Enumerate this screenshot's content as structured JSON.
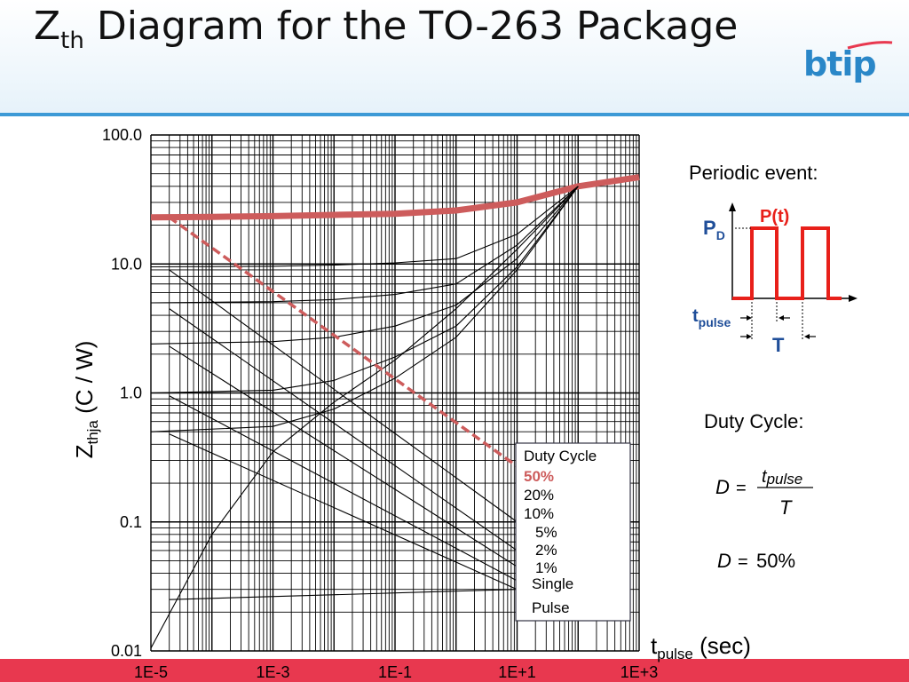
{
  "title": {
    "main": "Z",
    "sub": "th",
    "rest": " Diagram for the TO-263 Package"
  },
  "logo": "btip",
  "chart_data": {
    "type": "line",
    "title": "",
    "xscale": "log",
    "yscale": "log",
    "xlim": [
      1e-05,
      1000
    ],
    "ylim": [
      0.01,
      100
    ],
    "xticks": [
      "1E-5",
      "1E-3",
      "1E-1",
      "1E+1",
      "1E+3"
    ],
    "yticks": [
      "100.0",
      "10.0",
      "1.0",
      "0.1",
      "0.01"
    ],
    "ylabel": {
      "main": "Z",
      "sub": "thja",
      "rest": " (C / W)"
    },
    "xlabel": {
      "main": "t",
      "sub": "pulse",
      "rest": " (sec)"
    },
    "grid": true,
    "legend": {
      "title": "Duty Cycle",
      "position": "bottom-right",
      "items": [
        "50%",
        "20%",
        "10%",
        "5%",
        "2%",
        "1%",
        "Single Pulse"
      ]
    },
    "series": [
      {
        "name": "50%",
        "color": "#cd5c5c",
        "x": [
          1e-05,
          0.0001,
          0.001,
          0.01,
          0.1,
          1,
          10,
          100,
          1000
        ],
        "y": [
          23,
          23.2,
          23.5,
          24,
          24.5,
          26,
          30,
          40,
          47
        ]
      },
      {
        "name": "20%",
        "color": "#000000",
        "x": [
          1e-05,
          0.001,
          0.01,
          0.1,
          1,
          10,
          100
        ],
        "y": [
          9.5,
          9.6,
          9.8,
          10.2,
          11,
          17,
          40
        ]
      },
      {
        "name": "10%",
        "color": "#000000",
        "x": [
          1e-05,
          0.001,
          0.01,
          0.1,
          1,
          10,
          100
        ],
        "y": [
          5,
          5.1,
          5.3,
          5.8,
          7,
          14,
          40
        ]
      },
      {
        "name": "5%",
        "color": "#000000",
        "x": [
          1e-05,
          0.001,
          0.01,
          0.1,
          1,
          10,
          100
        ],
        "y": [
          2.4,
          2.5,
          2.7,
          3.3,
          4.8,
          11,
          40
        ]
      },
      {
        "name": "2%",
        "color": "#000000",
        "x": [
          1e-05,
          0.001,
          0.01,
          0.1,
          1,
          10,
          100
        ],
        "y": [
          1.0,
          1.05,
          1.25,
          1.9,
          3.3,
          9.5,
          40
        ]
      },
      {
        "name": "1%",
        "color": "#000000",
        "x": [
          1e-05,
          0.001,
          0.01,
          0.1,
          1,
          10,
          100
        ],
        "y": [
          0.5,
          0.55,
          0.75,
          1.3,
          2.7,
          9,
          40
        ]
      },
      {
        "name": "Single Pulse",
        "color": "#000000",
        "x": [
          1e-05,
          0.0001,
          0.001,
          0.01,
          0.1,
          1,
          10,
          100
        ],
        "y": [
          0.0105,
          0.08,
          0.35,
          0.85,
          1.8,
          4.5,
          13,
          40
        ]
      }
    ],
    "asymptote": {
      "color": "#cd5c5c",
      "style": "dashed",
      "x": [
        2e-05,
        10
      ],
      "y": [
        23,
        0.27
      ]
    },
    "low_lines": [
      {
        "x": [
          2e-05,
          10
        ],
        "y": [
          9,
          0.1
        ]
      },
      {
        "x": [
          2e-05,
          10
        ],
        "y": [
          4.5,
          0.06
        ]
      },
      {
        "x": [
          2e-05,
          10
        ],
        "y": [
          2.3,
          0.045
        ]
      },
      {
        "x": [
          2e-05,
          10
        ],
        "y": [
          0.95,
          0.035
        ]
      },
      {
        "x": [
          2e-05,
          10
        ],
        "y": [
          0.48,
          0.03
        ]
      },
      {
        "x": [
          2e-05,
          10
        ],
        "y": [
          0.025,
          0.03
        ]
      }
    ]
  },
  "side": {
    "periodic_label": "Periodic event:",
    "pd_main": "P",
    "pd_sub": "D",
    "pt_label": "P(t)",
    "tpulse_main": "t",
    "tpulse_sub": "pulse",
    "T_label": "T",
    "duty_label": "Duty Cycle:",
    "eq_D": "D",
    "eq_equals": "=",
    "eq_num_main": "t",
    "eq_num_sub": "pulse",
    "eq_den": "T",
    "eq2_D": "D",
    "eq2_equals": "=",
    "eq2_value": "50%"
  }
}
